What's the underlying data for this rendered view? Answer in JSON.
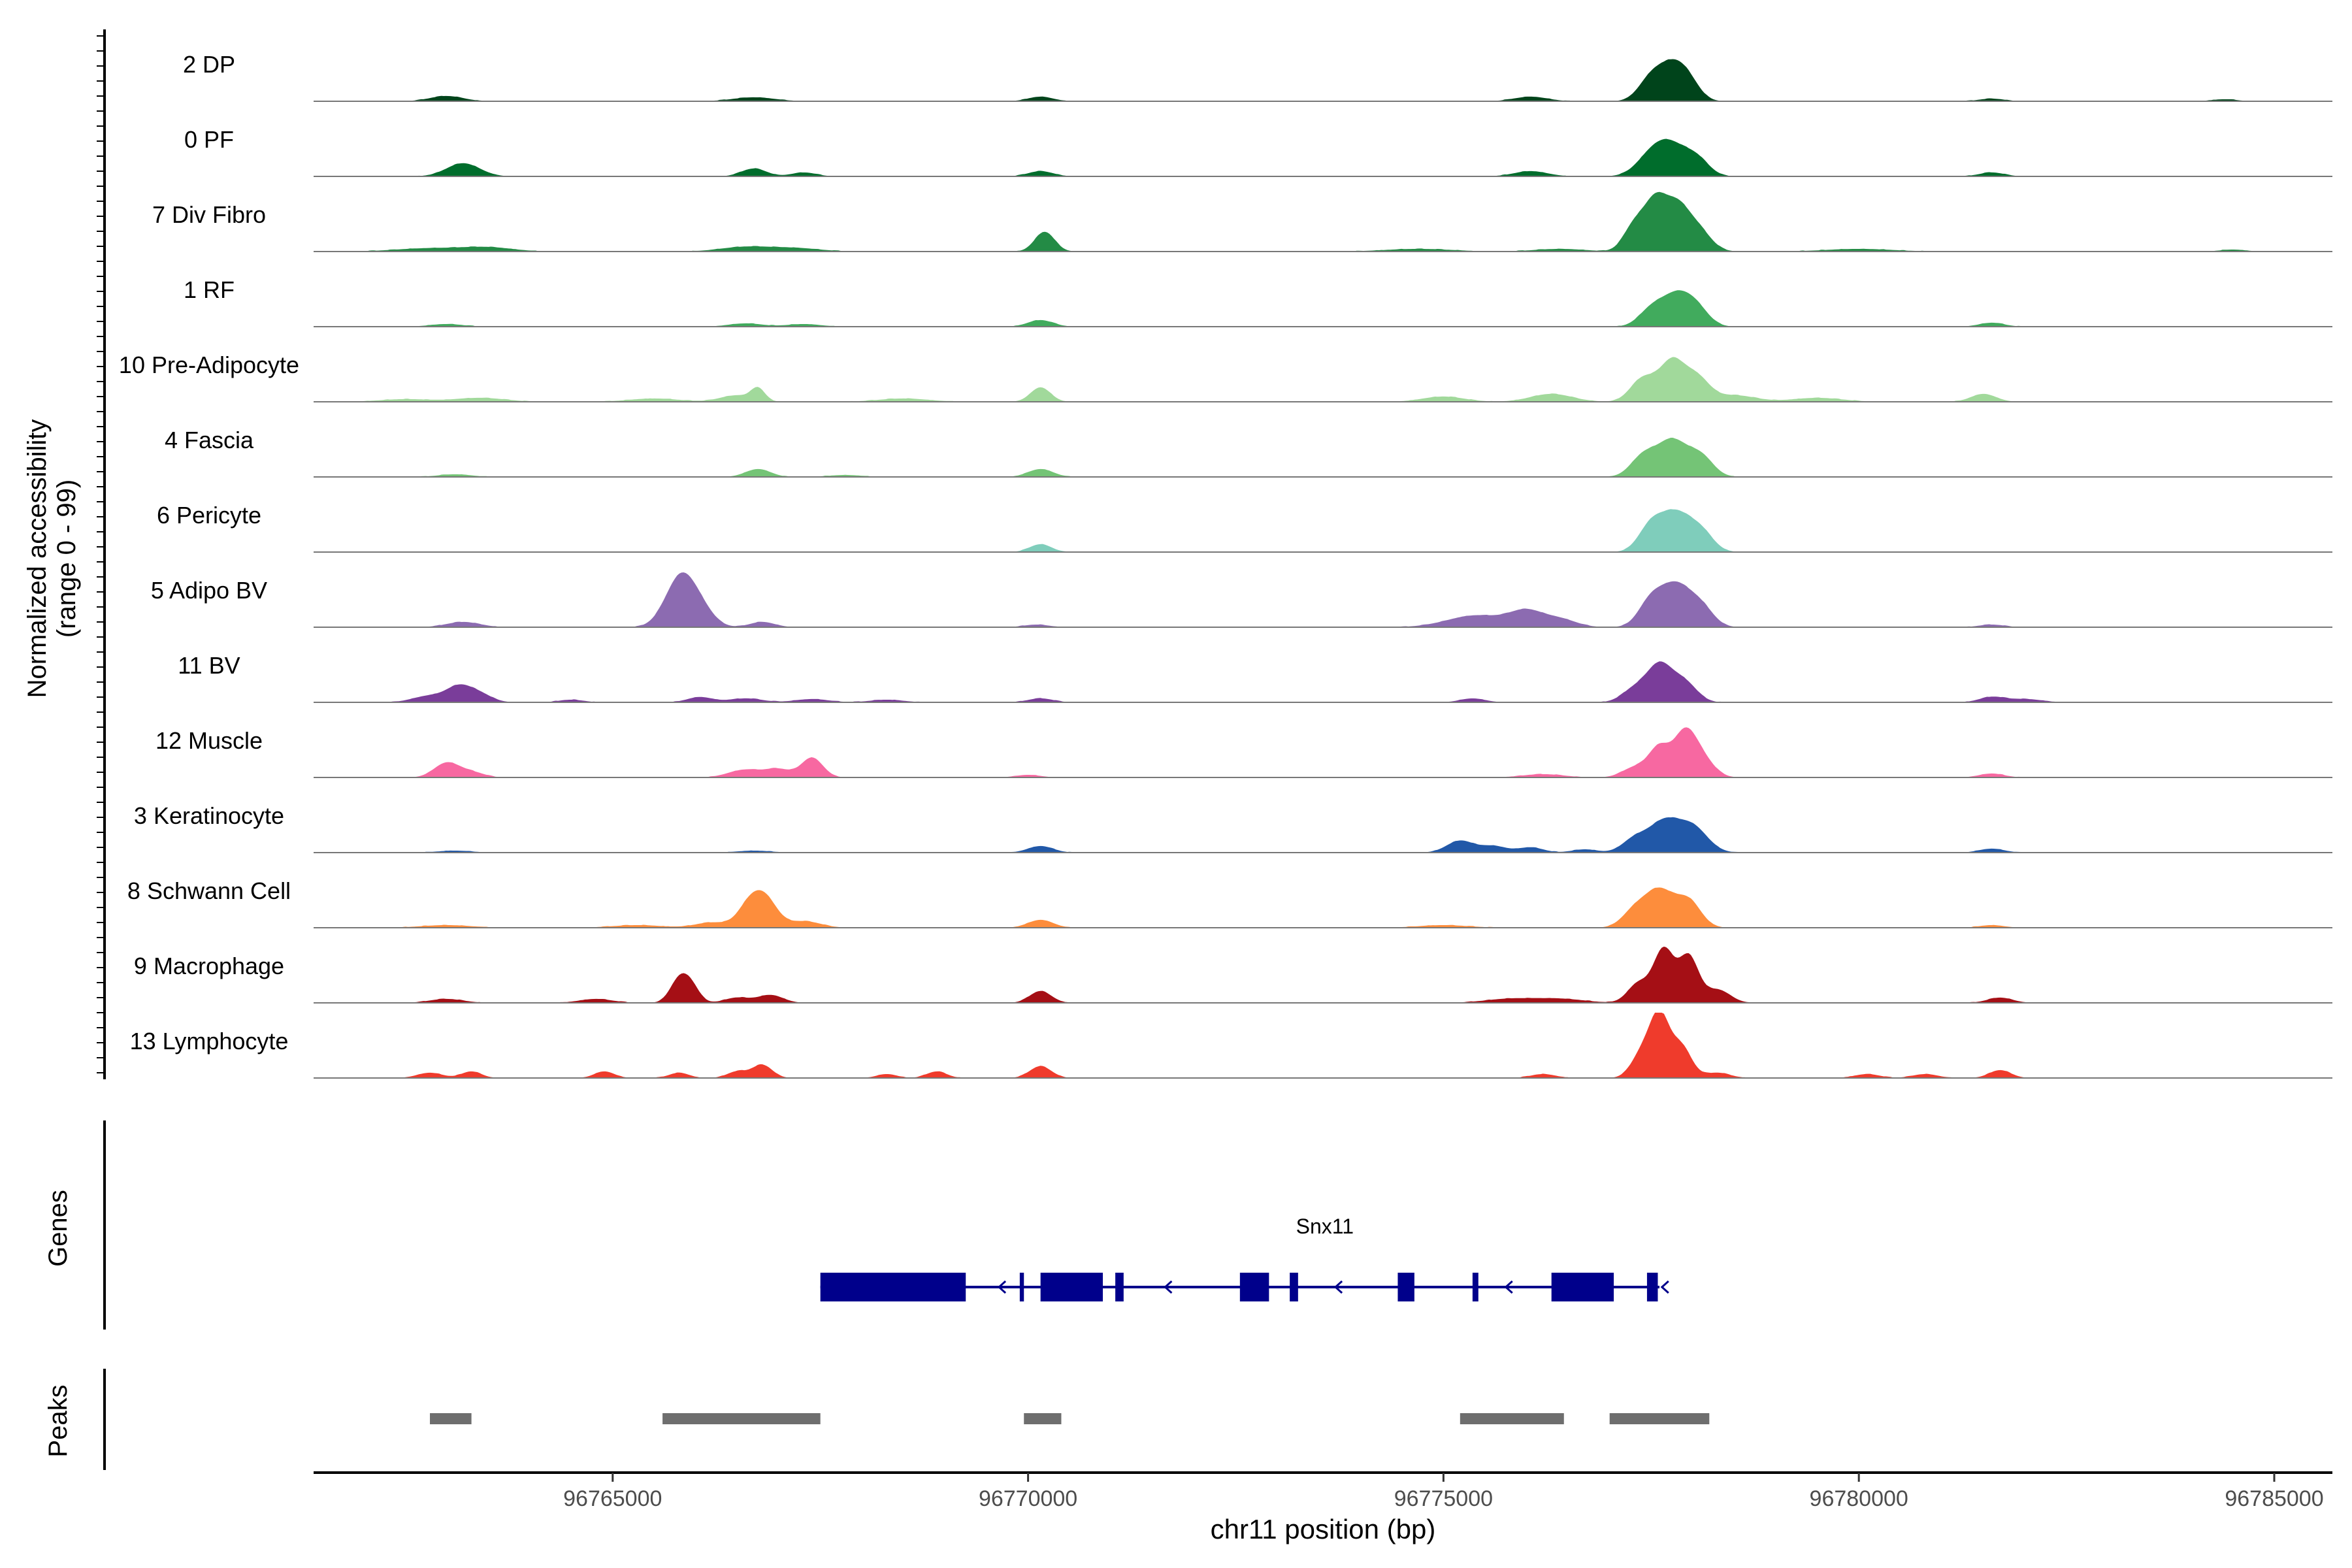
{
  "chart_data": {
    "type": "area",
    "title": "",
    "xlabel": "chr11 position (bp)",
    "ylabel_line1": "Normalized accessibility",
    "ylabel_line2": "(range 0 - 99)",
    "ylim": [
      0,
      99
    ],
    "xlim": [
      96761400,
      96785700
    ],
    "x_ticks": [
      {
        "value": 96765000,
        "label": "96765000"
      },
      {
        "value": 96770000,
        "label": "96770000"
      },
      {
        "value": 96775000,
        "label": "96775000"
      },
      {
        "value": 96780000,
        "label": "96780000"
      },
      {
        "value": 96785000,
        "label": "96785000"
      }
    ],
    "grid": false,
    "series": [
      {
        "name": "2 DP",
        "color": "#00441b",
        "peaks": [
          [
            96763000,
            8,
            200
          ],
          [
            96766700,
            6,
            250
          ],
          [
            96770150,
            7,
            150
          ],
          [
            96776050,
            7,
            200
          ],
          [
            96777500,
            35,
            150
          ],
          [
            96777750,
            45,
            150
          ],
          [
            96777950,
            28,
            140
          ],
          [
            96781600,
            4,
            150
          ],
          [
            96784400,
            3,
            150
          ]
        ]
      },
      {
        "name": "0 PF",
        "color": "#006d2c",
        "peaks": [
          [
            96763200,
            20,
            200
          ],
          [
            96766700,
            12,
            150
          ],
          [
            96767300,
            6,
            150
          ],
          [
            96770150,
            8,
            150
          ],
          [
            96776050,
            8,
            200
          ],
          [
            96777500,
            30,
            180
          ],
          [
            96777750,
            40,
            180
          ],
          [
            96778050,
            25,
            150
          ],
          [
            96781600,
            6,
            150
          ]
        ]
      },
      {
        "name": "7 Div Fibro",
        "color": "#238b45",
        "peaks": [
          [
            96762800,
            5,
            400
          ],
          [
            96763500,
            6,
            300
          ],
          [
            96766600,
            7,
            300
          ],
          [
            96767200,
            5,
            300
          ],
          [
            96770200,
            30,
            120
          ],
          [
            96774700,
            4,
            400
          ],
          [
            96776400,
            4,
            300
          ],
          [
            96777300,
            40,
            130
          ],
          [
            96777550,
            70,
            130
          ],
          [
            96777800,
            60,
            140
          ],
          [
            96778050,
            35,
            160
          ],
          [
            96780000,
            4,
            400
          ],
          [
            96784500,
            3,
            150
          ]
        ]
      },
      {
        "name": "1 RF",
        "color": "#41ab5d",
        "peaks": [
          [
            96763000,
            4,
            200
          ],
          [
            96766600,
            5,
            200
          ],
          [
            96767300,
            4,
            200
          ],
          [
            96770150,
            10,
            150
          ],
          [
            96777500,
            25,
            150
          ],
          [
            96777800,
            45,
            170
          ],
          [
            96778050,
            25,
            150
          ],
          [
            96781600,
            6,
            150
          ]
        ]
      },
      {
        "name": "10 Pre-Adipocyte",
        "color": "#a1d99b",
        "peaks": [
          [
            96762500,
            4,
            300
          ],
          [
            96763400,
            6,
            300
          ],
          [
            96765500,
            5,
            300
          ],
          [
            96766500,
            10,
            200
          ],
          [
            96766750,
            18,
            80
          ],
          [
            96768500,
            5,
            300
          ],
          [
            96770150,
            22,
            120
          ],
          [
            96775000,
            8,
            250
          ],
          [
            96776300,
            12,
            250
          ],
          [
            96777400,
            35,
            150
          ],
          [
            96777750,
            60,
            150
          ],
          [
            96778050,
            35,
            150
          ],
          [
            96778500,
            10,
            250
          ],
          [
            96779500,
            6,
            300
          ],
          [
            96781500,
            12,
            150
          ]
        ]
      },
      {
        "name": "4 Fascia",
        "color": "#74c476",
        "peaks": [
          [
            96763100,
            4,
            200
          ],
          [
            96766750,
            12,
            150
          ],
          [
            96767800,
            3,
            200
          ],
          [
            96770150,
            12,
            150
          ],
          [
            96777400,
            30,
            150
          ],
          [
            96777750,
            55,
            180
          ],
          [
            96778100,
            30,
            150
          ]
        ]
      },
      {
        "name": "6 Pericyte",
        "color": "#7fcdbb",
        "peaks": [
          [
            96770150,
            12,
            130
          ],
          [
            96777500,
            40,
            150
          ],
          [
            96777800,
            55,
            170
          ],
          [
            96778100,
            30,
            150
          ]
        ]
      },
      {
        "name": "5 Adipo BV",
        "color": "#8c6bb1",
        "peaks": [
          [
            96763200,
            8,
            200
          ],
          [
            96765700,
            30,
            160
          ],
          [
            96765850,
            50,
            150
          ],
          [
            96766050,
            30,
            160
          ],
          [
            96766800,
            8,
            150
          ],
          [
            96770100,
            4,
            150
          ],
          [
            96775400,
            18,
            350
          ],
          [
            96776000,
            22,
            200
          ],
          [
            96776400,
            12,
            200
          ],
          [
            96777500,
            40,
            150
          ],
          [
            96777800,
            60,
            170
          ],
          [
            96778100,
            30,
            150
          ],
          [
            96781600,
            4,
            150
          ]
        ]
      },
      {
        "name": "11 BV",
        "color": "#7a3d9a",
        "peaks": [
          [
            96762800,
            10,
            200
          ],
          [
            96763150,
            22,
            150
          ],
          [
            96763400,
            12,
            150
          ],
          [
            96764500,
            4,
            150
          ],
          [
            96766050,
            8,
            150
          ],
          [
            96766600,
            6,
            200
          ],
          [
            96767400,
            5,
            200
          ],
          [
            96768300,
            4,
            200
          ],
          [
            96770150,
            6,
            150
          ],
          [
            96775350,
            6,
            150
          ],
          [
            96777300,
            20,
            150
          ],
          [
            96777600,
            55,
            150
          ],
          [
            96777900,
            30,
            150
          ],
          [
            96782000,
            5,
            200
          ],
          [
            96781600,
            8,
            150
          ]
        ]
      },
      {
        "name": "12 Muscle",
        "color": "#f768a1",
        "peaks": [
          [
            96763000,
            22,
            150
          ],
          [
            96763300,
            8,
            150
          ],
          [
            96766600,
            12,
            200
          ],
          [
            96767000,
            12,
            150
          ],
          [
            96767400,
            30,
            130
          ],
          [
            96770000,
            4,
            150
          ],
          [
            96776200,
            5,
            250
          ],
          [
            96777300,
            15,
            150
          ],
          [
            96777600,
            45,
            130
          ],
          [
            96777900,
            60,
            130
          ],
          [
            96778100,
            30,
            150
          ],
          [
            96781600,
            6,
            150
          ]
        ]
      },
      {
        "name": "3 Keratinocyte",
        "color": "#2158a8",
        "peaks": [
          [
            96763100,
            3,
            200
          ],
          [
            96766700,
            3,
            200
          ],
          [
            96770150,
            10,
            150
          ],
          [
            96775200,
            18,
            160
          ],
          [
            96775600,
            10,
            160
          ],
          [
            96776050,
            8,
            150
          ],
          [
            96776700,
            5,
            150
          ],
          [
            96777300,
            20,
            150
          ],
          [
            96777650,
            45,
            180
          ],
          [
            96778000,
            38,
            180
          ],
          [
            96781600,
            6,
            150
          ]
        ]
      },
      {
        "name": "8 Schwann Cell",
        "color": "#fd8d3c",
        "peaks": [
          [
            96763000,
            4,
            300
          ],
          [
            96765300,
            4,
            300
          ],
          [
            96766200,
            8,
            200
          ],
          [
            96766650,
            35,
            140
          ],
          [
            96766850,
            38,
            140
          ],
          [
            96767300,
            10,
            200
          ],
          [
            96770150,
            12,
            150
          ],
          [
            96775000,
            4,
            300
          ],
          [
            96777300,
            25,
            150
          ],
          [
            96777600,
            55,
            170
          ],
          [
            96777950,
            40,
            150
          ],
          [
            96781600,
            4,
            150
          ]
        ]
      },
      {
        "name": "9 Macrophage",
        "color": "#a50f15",
        "peaks": [
          [
            96763000,
            6,
            200
          ],
          [
            96764800,
            6,
            200
          ],
          [
            96765800,
            35,
            110
          ],
          [
            96765950,
            22,
            100
          ],
          [
            96766500,
            8,
            150
          ],
          [
            96766900,
            12,
            150
          ],
          [
            96770150,
            18,
            130
          ],
          [
            96775800,
            6,
            300
          ],
          [
            96776400,
            6,
            300
          ],
          [
            96777350,
            30,
            130
          ],
          [
            96777650,
            80,
            120
          ],
          [
            96777950,
            70,
            120
          ],
          [
            96778300,
            20,
            150
          ],
          [
            96781700,
            8,
            150
          ]
        ]
      },
      {
        "name": "13 Lymphocyte",
        "color": "#ef3b2c",
        "peaks": [
          [
            96762800,
            8,
            150
          ],
          [
            96763300,
            10,
            120
          ],
          [
            96764900,
            10,
            120
          ],
          [
            96765800,
            8,
            120
          ],
          [
            96766500,
            10,
            120
          ],
          [
            96766800,
            20,
            120
          ],
          [
            96768300,
            6,
            120
          ],
          [
            96768900,
            10,
            120
          ],
          [
            96770150,
            18,
            130
          ],
          [
            96776200,
            6,
            150
          ],
          [
            96777400,
            40,
            130
          ],
          [
            96777600,
            85,
            110
          ],
          [
            96777850,
            50,
            130
          ],
          [
            96778300,
            8,
            150
          ],
          [
            96780100,
            6,
            150
          ],
          [
            96780800,
            6,
            150
          ],
          [
            96781700,
            12,
            130
          ]
        ]
      }
    ],
    "genes_label": "Genes",
    "gene": {
      "name": "Snx11",
      "start": 96767500,
      "end": 96777600,
      "strand": "-",
      "exons": [
        [
          96767500,
          96769250
        ],
        [
          96769900,
          96769950
        ],
        [
          96770150,
          96770900
        ],
        [
          96771050,
          96771150
        ],
        [
          96772550,
          96772900
        ],
        [
          96773150,
          96773250
        ],
        [
          96774450,
          96774650
        ],
        [
          96775350,
          96775420
        ],
        [
          96776300,
          96777050
        ],
        [
          96777450,
          96777580
        ]
      ],
      "arrows": [
        96769650,
        96771650,
        96773700,
        96775750
      ]
    },
    "peaks_label": "Peaks",
    "peaks": [
      [
        96762800,
        96763300
      ],
      [
        96765600,
        96767500
      ],
      [
        96769950,
        96770400
      ],
      [
        96775200,
        96776450
      ],
      [
        96777000,
        96778200
      ]
    ]
  }
}
